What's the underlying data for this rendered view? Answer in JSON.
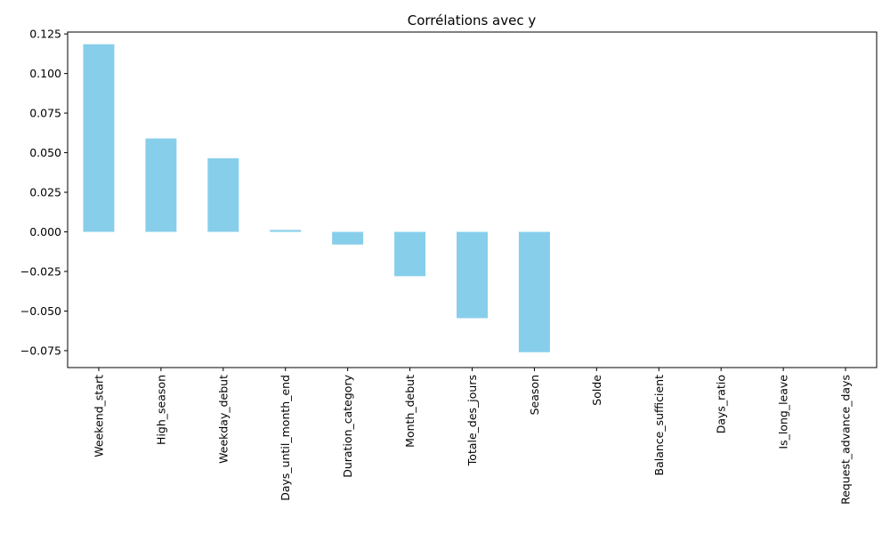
{
  "chart_data": {
    "type": "bar",
    "title": "Corrélations avec y",
    "xlabel": "",
    "ylabel": "",
    "categories": [
      "Weekend_start",
      "High_season",
      "Weekday_debut",
      "Days_until_month_end",
      "Duration_category",
      "Month_debut",
      "Totale_des_jours",
      "Season",
      "Solde",
      "Balance_sufficient",
      "Days_ratio",
      "Is_long_leave",
      "Request_advance_days"
    ],
    "values": [
      0.1185,
      0.059,
      0.0465,
      0.0012,
      -0.008,
      -0.028,
      -0.0545,
      -0.076,
      null,
      null,
      null,
      null,
      null
    ],
    "yticks": [
      -0.075,
      -0.05,
      -0.025,
      0.0,
      0.025,
      0.05,
      0.075,
      0.1,
      0.125
    ],
    "ytick_labels": [
      "−0.075",
      "−0.050",
      "−0.025",
      "0.000",
      "0.025",
      "0.050",
      "0.075",
      "0.100",
      "0.125"
    ],
    "ylim": [
      -0.0857,
      0.1262
    ],
    "bar_color": "#87ceeb",
    "grid": false,
    "legend": "none"
  }
}
